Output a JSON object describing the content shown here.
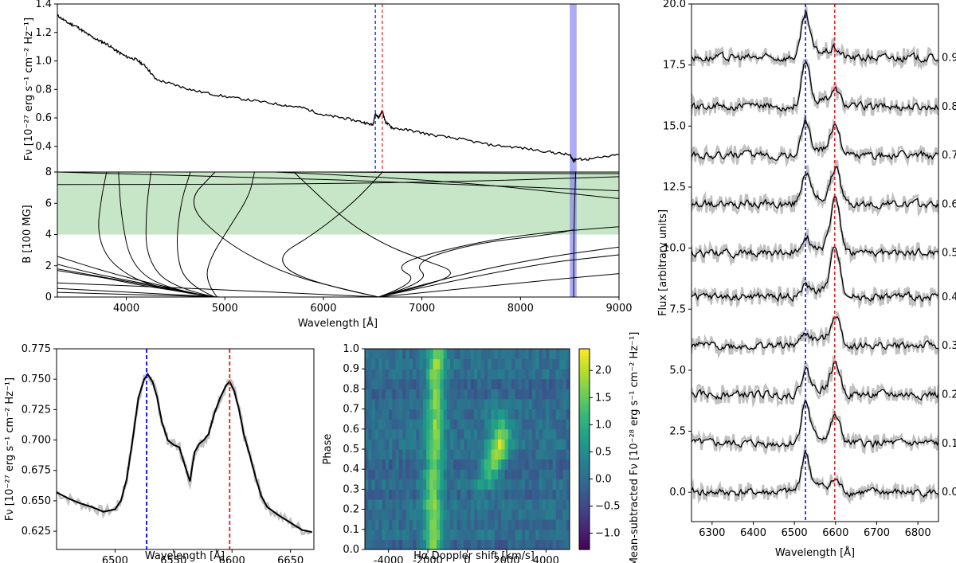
{
  "colors": {
    "blue_line": "#0000ff",
    "red_line": "#e41a1c",
    "green_band": "#a9d8a9",
    "blue_band": "#8080ee",
    "spectrum": "#000000",
    "raw_spectrum": "#c0c0c0"
  },
  "chart_data": [
    {
      "id": "spectrum",
      "type": "line",
      "title": "",
      "xlabel": "",
      "ylabel": "Fν [10⁻²⁷ erg s⁻¹ cm⁻² Hz⁻¹]",
      "xlim": [
        3300,
        9000
      ],
      "ylim": [
        0.22,
        1.4
      ],
      "yticks": [
        "0.4",
        "0.6",
        "0.8",
        "1.0",
        "1.2",
        "1.4"
      ],
      "ytick_values": [
        0.4,
        0.6,
        0.8,
        1.0,
        1.2,
        1.4
      ],
      "vlines": [
        {
          "x": 6527,
          "color": "blue"
        },
        {
          "x": 6598,
          "color": "red"
        }
      ],
      "band": [
        8500,
        8570
      ],
      "series": [
        {
          "name": "spectrum",
          "x": [
            3300,
            3400,
            3500,
            3600,
            3700,
            3800,
            3900,
            4000,
            4100,
            4200,
            4300,
            4500,
            4700,
            5000,
            5300,
            5600,
            5800,
            6000,
            6200,
            6400,
            6500,
            6527,
            6560,
            6598,
            6630,
            6700,
            6900,
            7100,
            7400,
            7700,
            8000,
            8300,
            8500,
            8540,
            8560,
            8700,
            9000
          ],
          "y": [
            1.32,
            1.27,
            1.24,
            1.19,
            1.15,
            1.12,
            1.07,
            1.03,
            1.01,
            0.96,
            0.87,
            0.83,
            0.79,
            0.75,
            0.72,
            0.69,
            0.67,
            0.62,
            0.6,
            0.57,
            0.55,
            0.63,
            0.6,
            0.65,
            0.57,
            0.53,
            0.51,
            0.48,
            0.45,
            0.41,
            0.39,
            0.36,
            0.34,
            0.3,
            0.31,
            0.31,
            0.34
          ]
        }
      ]
    },
    {
      "id": "field-tracks",
      "type": "line",
      "ylabel": "B [100 MG]",
      "xlabel": "Wavelength [Å]",
      "xlim": [
        3300,
        9000
      ],
      "ylim": [
        0,
        8
      ],
      "xticks": [
        "4000",
        "5000",
        "6000",
        "7000",
        "8000",
        "9000"
      ],
      "xtick_values": [
        4000,
        5000,
        6000,
        7000,
        8000,
        9000
      ],
      "yticks": [
        "0",
        "2",
        "4",
        "6",
        "8"
      ],
      "ytick_values": [
        0,
        2,
        4,
        6,
        8
      ],
      "band_y": [
        4,
        8
      ],
      "band_x": [
        8500,
        8570
      ],
      "series": [
        {
          "name": "t1",
          "x": [
            4900,
            4500,
            4100,
            3800,
            3600,
            3400,
            3300
          ],
          "y": [
            0,
            0.4,
            0.8,
            1.2,
            1.4,
            1.6,
            1.7
          ]
        },
        {
          "name": "t2",
          "x": [
            4880,
            4450,
            4000,
            3650,
            3400,
            3300
          ],
          "y": [
            0,
            0.5,
            1.0,
            1.4,
            1.7,
            1.8
          ]
        },
        {
          "name": "t3",
          "x": [
            4860,
            4400,
            3900,
            3600,
            3300
          ],
          "y": [
            0,
            0.6,
            1.2,
            1.6,
            2.1
          ]
        },
        {
          "name": "t4",
          "x": [
            4850,
            4300,
            3800,
            3300
          ],
          "y": [
            0,
            0.8,
            1.6,
            2.6
          ]
        },
        {
          "name": "t5",
          "x": [
            4900,
            4300,
            3850,
            3700,
            3750,
            3800
          ],
          "y": [
            0,
            0.5,
            2.0,
            4.0,
            6.5,
            8.0
          ]
        },
        {
          "name": "t6",
          "x": [
            4900,
            4400,
            4050,
            3950,
            3920
          ],
          "y": [
            0,
            0.5,
            2.0,
            5.0,
            8.0
          ]
        },
        {
          "name": "t7",
          "x": [
            4900,
            4450,
            4200,
            4200,
            4250
          ],
          "y": [
            0,
            0.6,
            2.5,
            5.5,
            8.0
          ]
        },
        {
          "name": "t8",
          "x": [
            4900,
            4600,
            4500,
            4550,
            4650
          ],
          "y": [
            0,
            0.8,
            3.0,
            6.0,
            8.0
          ]
        },
        {
          "name": "t9",
          "x": [
            4920,
            4800,
            4850,
            5050,
            5250,
            5300
          ],
          "y": [
            0,
            1.0,
            2.5,
            4.5,
            6.5,
            8.0
          ]
        },
        {
          "name": "t10",
          "x": [
            4950,
            3300
          ],
          "y": [
            0,
            0.55
          ]
        },
        {
          "name": "t11",
          "x": [
            4950,
            3300
          ],
          "y": [
            0,
            0.3
          ]
        },
        {
          "name": "t12",
          "x": [
            6560,
            5400,
            4300,
            3300
          ],
          "y": [
            0,
            0.35,
            0.65,
            0.9
          ]
        },
        {
          "name": "t13",
          "x": [
            6560,
            5800,
            5500,
            5900,
            6300,
            6600
          ],
          "y": [
            0,
            1.0,
            2.5,
            4.0,
            6.0,
            8.0
          ]
        },
        {
          "name": "t14",
          "x": [
            6560,
            6200,
            5600,
            5000,
            4600,
            4900
          ],
          "y": [
            0,
            0.5,
            1.5,
            3.5,
            6.0,
            8.0
          ]
        },
        {
          "name": "t15",
          "x": [
            6560,
            6900,
            7400,
            7000,
            6600,
            6200,
            5700
          ],
          "y": [
            0,
            0.5,
            1.5,
            2.4,
            3.4,
            5.0,
            8.0
          ]
        },
        {
          "name": "t16",
          "x": [
            6560,
            7000,
            6700,
            7200,
            8000,
            9000
          ],
          "y": [
            0,
            1.0,
            2.0,
            3.0,
            4.0,
            4.5
          ]
        },
        {
          "name": "t17",
          "x": [
            6560,
            7100,
            6900,
            7500,
            8300,
            8540
          ],
          "y": [
            0,
            1.0,
            2.2,
            3.4,
            4.0,
            4.3
          ]
        },
        {
          "name": "t18",
          "x": [
            6560,
            7400,
            8300,
            9000
          ],
          "y": [
            0,
            1.5,
            2.6,
            3.2
          ]
        },
        {
          "name": "t19",
          "x": [
            6560,
            8000,
            9000
          ],
          "y": [
            0,
            2.0,
            2.7
          ]
        },
        {
          "name": "t20",
          "x": [
            6560,
            7800,
            9000
          ],
          "y": [
            0,
            0.8,
            1.5
          ]
        },
        {
          "name": "t21",
          "x": [
            3300,
            5200,
            7000,
            9000
          ],
          "y": [
            8.0,
            7.7,
            7.3,
            6.8
          ]
        },
        {
          "name": "t22",
          "x": [
            3300,
            5500,
            7500,
            9000
          ],
          "y": [
            7.2,
            7.2,
            7.4,
            7.7
          ]
        },
        {
          "name": "t23",
          "x": [
            5500,
            7000,
            9000
          ],
          "y": [
            8.0,
            7.6,
            6.3
          ]
        },
        {
          "name": "t24",
          "x": [
            6000,
            8000,
            9000
          ],
          "y": [
            8.0,
            7.9,
            7.9
          ]
        },
        {
          "name": "t25",
          "x": [
            8540,
            8540,
            8560
          ],
          "y": [
            0,
            4.0,
            8.0
          ]
        }
      ]
    },
    {
      "id": "halpha-zoom",
      "type": "line",
      "xlabel": "Wavelength [Å]",
      "ylabel": "Fν [10⁻²⁷ erg s⁻¹ cm⁻² Hz⁻¹]",
      "xlim": [
        6450,
        6670
      ],
      "ylim": [
        0.61,
        0.775
      ],
      "xticks": [
        "6500",
        "6550",
        "6600",
        "6650"
      ],
      "xtick_values": [
        6500,
        6550,
        6600,
        6650
      ],
      "yticks": [
        "0.625",
        "0.650",
        "0.675",
        "0.700",
        "0.725",
        "0.750",
        "0.775"
      ],
      "ytick_values": [
        0.625,
        0.65,
        0.675,
        0.7,
        0.725,
        0.75,
        0.775
      ],
      "vlines": [
        {
          "x": 6527,
          "color": "blue"
        },
        {
          "x": 6598,
          "color": "red"
        }
      ],
      "series": [
        {
          "name": "smoothed",
          "x": [
            6450,
            6460,
            6470,
            6480,
            6490,
            6500,
            6505,
            6510,
            6515,
            6520,
            6525,
            6528,
            6532,
            6536,
            6540,
            6545,
            6550,
            6555,
            6560,
            6564,
            6568,
            6572,
            6576,
            6580,
            6585,
            6590,
            6595,
            6598,
            6602,
            6606,
            6610,
            6615,
            6620,
            6625,
            6630,
            6640,
            6650,
            6660,
            6670
          ],
          "y": [
            0.657,
            0.652,
            0.648,
            0.645,
            0.641,
            0.643,
            0.65,
            0.668,
            0.7,
            0.735,
            0.75,
            0.754,
            0.748,
            0.735,
            0.715,
            0.7,
            0.696,
            0.694,
            0.678,
            0.666,
            0.69,
            0.697,
            0.7,
            0.705,
            0.722,
            0.735,
            0.745,
            0.748,
            0.74,
            0.725,
            0.705,
            0.688,
            0.67,
            0.654,
            0.645,
            0.638,
            0.632,
            0.626,
            0.624
          ]
        }
      ]
    },
    {
      "id": "trailed-spectrogram",
      "type": "heatmap",
      "xlabel": "Hα Doppler shift [km/s]",
      "ylabel": "Phase",
      "xlim": [
        -5200,
        5200
      ],
      "ylim": [
        0,
        1
      ],
      "xticks": [
        "-4000",
        "-2000",
        "0",
        "2000",
        "4000"
      ],
      "xtick_values": [
        -4000,
        -2000,
        0,
        2000,
        4000
      ],
      "yticks": [
        "0.0",
        "0.1",
        "0.2",
        "0.3",
        "0.4",
        "0.5",
        "0.6",
        "0.7",
        "0.8",
        "0.9",
        "1.0"
      ],
      "ytick_values": [
        0,
        0.1,
        0.2,
        0.3,
        0.4,
        0.5,
        0.6,
        0.7,
        0.8,
        0.9,
        1.0
      ],
      "colorbar_label": "Mean-subtracted Fν [10⁻²⁸ erg s⁻¹ cm⁻² Hz⁻¹]",
      "colorbar_ticks": [
        "−1.0",
        "−0.5",
        "0.0",
        "0.5",
        "1.0",
        "1.5",
        "2.0"
      ],
      "colorbar_tick_values": [
        -1.0,
        -0.5,
        0.0,
        0.5,
        1.0,
        1.5,
        2.0
      ],
      "colorbar_range": [
        -1.3,
        2.4
      ],
      "blue_component": {
        "velocity": [
          -1700,
          -1750,
          -1650,
          -1600,
          -1550
        ],
        "phase": [
          0.0,
          0.25,
          0.5,
          0.75,
          1.0
        ],
        "peak": 1.7
      },
      "red_component": {
        "velocity": [
          600,
          1000,
          1600,
          1750,
          1400
        ],
        "phase": [
          0.2,
          0.35,
          0.5,
          0.6,
          0.75
        ],
        "peak": 2.0
      }
    },
    {
      "id": "phased-spectra",
      "type": "line",
      "xlabel": "Wavelength [Å]",
      "ylabel": "Flux [arbitrary units]",
      "xlim": [
        6250,
        6850
      ],
      "ylim": [
        -1.2,
        20
      ],
      "xticks": [
        "6300",
        "6400",
        "6500",
        "6600",
        "6700",
        "6800"
      ],
      "xtick_values": [
        6300,
        6400,
        6500,
        6600,
        6700,
        6800
      ],
      "yticks": [
        "0.0",
        "2.5",
        "5.0",
        "7.5",
        "10.0",
        "12.5",
        "15.0",
        "17.5",
        "20.0"
      ],
      "ytick_values": [
        0,
        2.5,
        5.0,
        7.5,
        10.0,
        12.5,
        15.0,
        17.5,
        20.0
      ],
      "vlines": [
        {
          "x": 6527,
          "color": "blue"
        },
        {
          "x": 6598,
          "color": "red"
        }
      ],
      "phase_labels": [
        "0.0",
        "0.1",
        "0.2",
        "0.3",
        "0.4",
        "0.5",
        "0.6",
        "0.7",
        "0.8",
        "0.9"
      ],
      "series": [
        {
          "name": "phase 0.0",
          "offset": 0.0,
          "blue_peak": 1.5,
          "red_peak": 0.4
        },
        {
          "name": "phase 0.1",
          "offset": 2.0,
          "blue_peak": 1.6,
          "red_peak": 1.0
        },
        {
          "name": "phase 0.2",
          "offset": 4.0,
          "blue_peak": 0.9,
          "red_peak": 1.2
        },
        {
          "name": "phase 0.3",
          "offset": 6.0,
          "blue_peak": 0.4,
          "red_peak": 1.2
        },
        {
          "name": "phase 0.4",
          "offset": 8.0,
          "blue_peak": 0.3,
          "red_peak": 2.0
        },
        {
          "name": "phase 0.5",
          "offset": 9.8,
          "blue_peak": 0.6,
          "red_peak": 2.2
        },
        {
          "name": "phase 0.6",
          "offset": 11.8,
          "blue_peak": 1.2,
          "red_peak": 1.4
        },
        {
          "name": "phase 0.7",
          "offset": 13.8,
          "blue_peak": 1.3,
          "red_peak": 1.2
        },
        {
          "name": "phase 0.8",
          "offset": 15.8,
          "blue_peak": 1.6,
          "red_peak": 0.6
        },
        {
          "name": "phase 0.9",
          "offset": 17.8,
          "blue_peak": 1.6,
          "red_peak": 0.3
        }
      ]
    }
  ]
}
